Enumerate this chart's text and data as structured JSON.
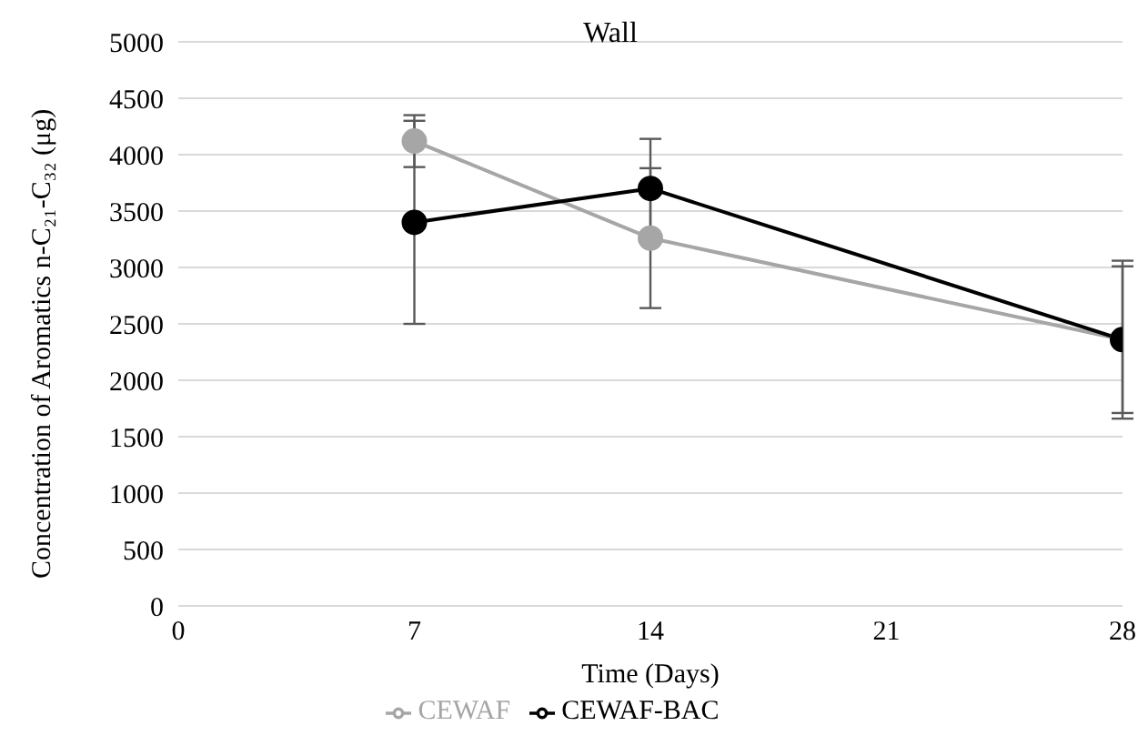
{
  "chart_data": {
    "type": "line",
    "title": "Wall",
    "xlabel": "Time (Days)",
    "ylabel": "Concentration of Aromatics n-C₂₁-C₃₂ (μg)",
    "x": [
      7,
      14,
      28
    ],
    "series": [
      {
        "name": "CEWAF",
        "color": "#a6a6a6",
        "values": [
          4120,
          3260,
          2360
        ],
        "errors": [
          230,
          620,
          700
        ]
      },
      {
        "name": "CEWAF-BAC",
        "color": "#000000",
        "values": [
          3400,
          3700,
          2360
        ],
        "errors": [
          900,
          440,
          650
        ]
      }
    ],
    "xlim": [
      0,
      28
    ],
    "xticks": [
      0,
      7,
      14,
      21,
      28
    ],
    "ylim": [
      0,
      5000
    ],
    "yticks": [
      0,
      500,
      1000,
      1500,
      2000,
      2500,
      3000,
      3500,
      4000,
      4500,
      5000
    ],
    "grid": "y",
    "legend": "bottom",
    "marker": "circle",
    "line_style": "solid"
  }
}
